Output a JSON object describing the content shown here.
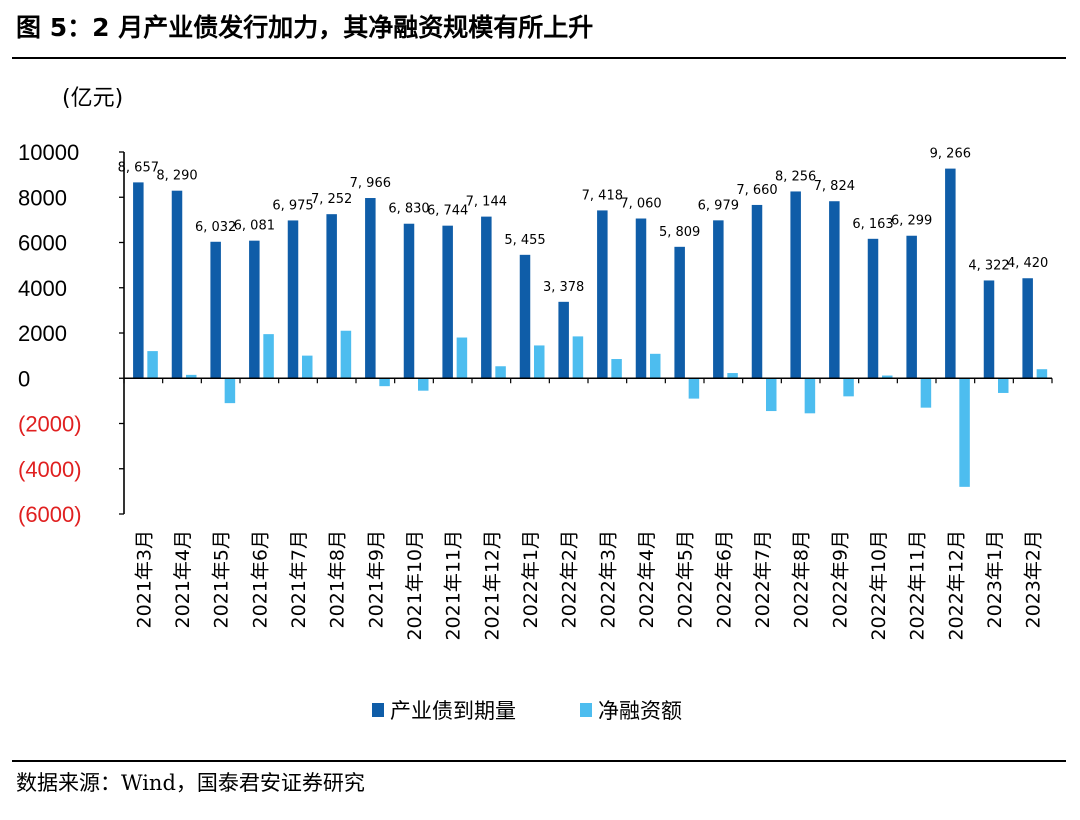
{
  "title": "图 5：2 月产业债发行加力，其净融资规模有所上升",
  "unit_label": "(亿元)",
  "source": "数据来源：Wind，国泰君安证券研究",
  "colors": {
    "series1": "#0F5DA8",
    "series2": "#4DBDEF",
    "negative_tick": "#E02020",
    "axis": "#000000"
  },
  "chart_data": {
    "type": "bar",
    "title": "2 月产业债发行加力，其净融资规模有所上升",
    "ylabel": "(亿元)",
    "ylim": [
      -6000,
      10000
    ],
    "yticks": [
      10000,
      8000,
      6000,
      4000,
      2000,
      0,
      -2000,
      -4000,
      -6000
    ],
    "ytick_labels": [
      "10000",
      "8000",
      "6000",
      "4000",
      "2000",
      "0",
      "(2000)",
      "(4000)",
      "(6000)"
    ],
    "categories": [
      "2021年3月",
      "2021年4月",
      "2021年5月",
      "2021年6月",
      "2021年7月",
      "2021年8月",
      "2021年9月",
      "2021年10月",
      "2021年11月",
      "2021年12月",
      "2022年1月",
      "2022年2月",
      "2022年3月",
      "2022年4月",
      "2022年5月",
      "2022年6月",
      "2022年7月",
      "2022年8月",
      "2022年9月",
      "2022年10月",
      "2022年11月",
      "2022年12月",
      "2023年1月",
      "2023年2月"
    ],
    "series": [
      {
        "name": "产业债到期量",
        "values": [
          8657,
          8290,
          6032,
          6081,
          6975,
          7252,
          7966,
          6830,
          6744,
          7144,
          5455,
          3378,
          7418,
          7060,
          5809,
          6979,
          7660,
          8256,
          7824,
          6163,
          6299,
          9266,
          4322,
          4420
        ],
        "labels": [
          "8, 657",
          "8, 290",
          "6, 032",
          "6, 081",
          "6, 975",
          "7, 252",
          "7, 966",
          "6, 830",
          "6, 744",
          "7, 144",
          "5, 455",
          "3, 378",
          "7, 418",
          "7, 060",
          "5, 809",
          "6, 979",
          "7, 660",
          "8, 256",
          "7, 824",
          "6, 163",
          "6, 299",
          "9, 266",
          "4, 322",
          "4, 420"
        ]
      },
      {
        "name": "净融资额",
        "values": [
          1200,
          150,
          -1100,
          1950,
          1000,
          2100,
          -350,
          -550,
          1800,
          530,
          1450,
          1850,
          850,
          1080,
          -900,
          230,
          -1450,
          -1550,
          -800,
          120,
          -1300,
          -4800,
          -650,
          400
        ]
      }
    ],
    "legend": "bottom-center"
  }
}
